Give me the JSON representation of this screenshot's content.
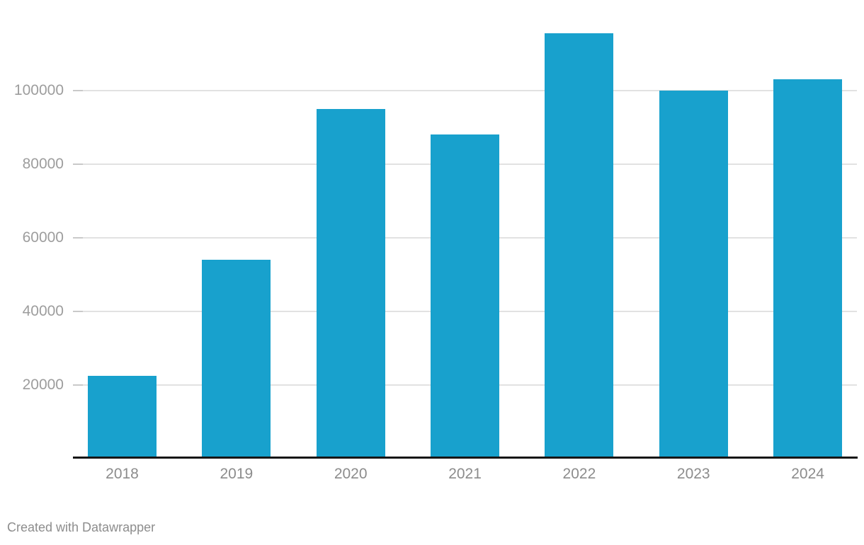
{
  "chart_data": {
    "type": "bar",
    "title": "",
    "xlabel": "",
    "ylabel": "",
    "categories": [
      "2018",
      "2019",
      "2020",
      "2021",
      "2022",
      "2023",
      "2024"
    ],
    "values": [
      22500,
      54000,
      95000,
      88000,
      115500,
      100000,
      103000
    ],
    "yticks": [
      20000,
      40000,
      60000,
      80000,
      100000
    ],
    "ylim": [
      0,
      116000
    ],
    "grid": "horizontal",
    "legend": "none",
    "bar_color": "#18a1cd"
  },
  "colors": {
    "bar": "#18a1cd",
    "gridline": "#e2e2e2",
    "tick": "#c9c9c9",
    "axis_line": "#161616",
    "y_label": "#9d9d9d",
    "x_label": "#8c8c8c",
    "footer": "#8d8d8d",
    "background": "#ffffff"
  },
  "footer": {
    "text": "Created with Datawrapper"
  }
}
